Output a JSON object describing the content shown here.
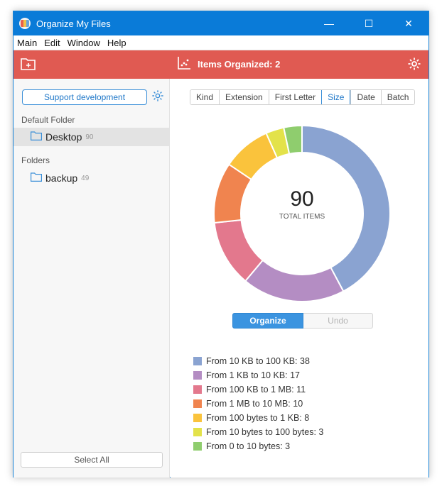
{
  "window": {
    "title": "Organize My Files",
    "controls": [
      "—",
      "☐",
      "✕"
    ]
  },
  "menu": [
    "Main",
    "Edit",
    "Window",
    "Help"
  ],
  "toolbar": {
    "items_organized": "Items Organized: 2"
  },
  "sidebar": {
    "support_label": "Support development",
    "default_folder_label": "Default Folder",
    "default_folder": {
      "name": "Desktop",
      "count": "90"
    },
    "folders_label": "Folders",
    "folders": [
      {
        "name": "backup",
        "count": "49"
      }
    ],
    "select_all_label": "Select All"
  },
  "tabs": [
    {
      "label": "Kind",
      "active": false
    },
    {
      "label": "Extension",
      "active": false
    },
    {
      "label": "First Letter",
      "active": false
    },
    {
      "label": "Size",
      "active": true
    },
    {
      "label": "Date",
      "active": false
    },
    {
      "label": "Batch",
      "active": false
    }
  ],
  "chart_data": {
    "type": "pie",
    "center_value": "90",
    "center_label": "TOTAL ITEMS",
    "slices": [
      {
        "label": "From 10 KB to 100 KB",
        "value": 38,
        "color": "#8aa3d1"
      },
      {
        "label": "From 1 KB to 10 KB",
        "value": 17,
        "color": "#b48dc3"
      },
      {
        "label": "From 100 KB to 1 MB",
        "value": 11,
        "color": "#e3788d"
      },
      {
        "label": "From 1 MB to 10 MB",
        "value": 10,
        "color": "#f0844f"
      },
      {
        "label": "From 100 bytes to 1 KB",
        "value": 8,
        "color": "#fac33c"
      },
      {
        "label": "From 10 bytes to 100 bytes",
        "value": 3,
        "color": "#e3e24a"
      },
      {
        "label": "From 0 to 10 bytes",
        "value": 3,
        "color": "#8fcd6e"
      }
    ]
  },
  "actions": {
    "organize_label": "Organize",
    "undo_label": "Undo"
  }
}
